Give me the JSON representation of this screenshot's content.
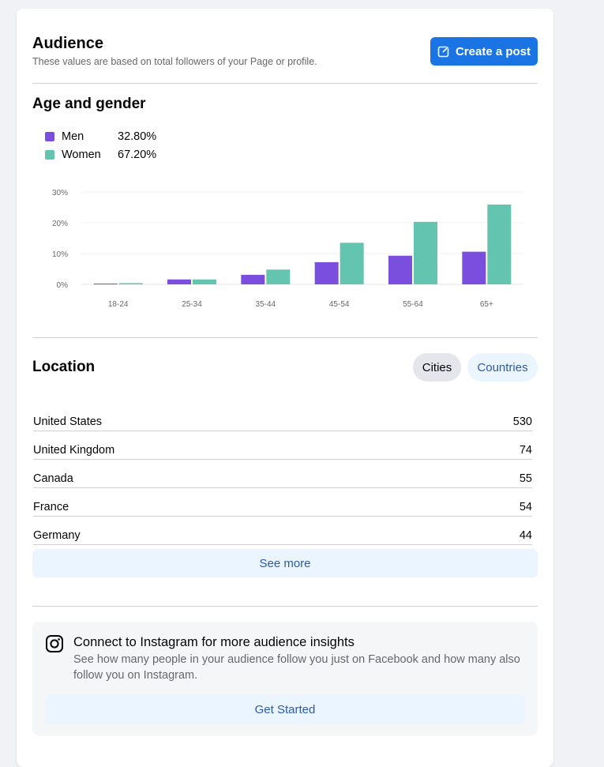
{
  "header": {
    "title": "Audience",
    "subtitle": "These values are based on total followers of your Page or profile.",
    "create_post_label": "Create a post",
    "create_post_icon": "edit-icon"
  },
  "colors": {
    "men": "#7b4fdd",
    "women": "#63c5b0",
    "primary": "#1b74e4",
    "link": "#2d5aa8",
    "soft_blue": "#ebf5ff"
  },
  "age_gender": {
    "title": "Age and gender",
    "legend": [
      {
        "label": "Men",
        "value": "32.80%"
      },
      {
        "label": "Women",
        "value": "67.20%"
      }
    ]
  },
  "chart_data": {
    "type": "bar",
    "categories": [
      "18-24",
      "25-34",
      "35-44",
      "45-54",
      "55-64",
      "65+"
    ],
    "series": [
      {
        "name": "Men",
        "values": [
          0.2,
          1.6,
          3.1,
          7.2,
          9.3,
          10.6
        ]
      },
      {
        "name": "Women",
        "values": [
          0.4,
          1.6,
          4.8,
          13.5,
          20.3,
          25.9
        ]
      }
    ],
    "y_ticks": [
      "0%",
      "10%",
      "20%",
      "30%"
    ],
    "ylim": [
      0,
      30
    ],
    "grid": true
  },
  "location": {
    "title": "Location",
    "tabs": [
      {
        "label": "Cities",
        "selected": true
      },
      {
        "label": "Countries",
        "selected": false
      }
    ],
    "rows": [
      {
        "name": "United States",
        "count": "530"
      },
      {
        "name": "United Kingdom",
        "count": "74"
      },
      {
        "name": "Canada",
        "count": "55"
      },
      {
        "name": "France",
        "count": "54"
      },
      {
        "name": "Germany",
        "count": "44"
      }
    ],
    "see_more_label": "See more"
  },
  "instagram": {
    "icon": "instagram-icon",
    "title": "Connect to Instagram for more audience insights",
    "description": "See how many people in your audience follow you just on Facebook and how many also follow you on Instagram.",
    "button_label": "Get Started"
  }
}
